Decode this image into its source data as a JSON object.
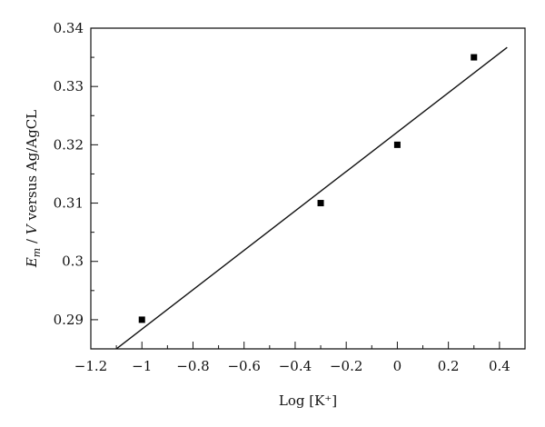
{
  "chart_data": {
    "type": "scatter",
    "xlabel": "Log [K⁺]",
    "ylabel": {
      "main": "E",
      "sub": "m",
      "rest1": " / ",
      "italic": "V",
      "rest2": " versus Ag/AgCL"
    },
    "xlim": [
      -1.2,
      0.5
    ],
    "ylim": [
      0.285,
      0.34
    ],
    "xticks": [
      -1.2,
      -1.0,
      -0.8,
      -0.6,
      -0.4,
      -0.2,
      0,
      0.2,
      0.4
    ],
    "xtick_labels": [
      "−1.2",
      "−1",
      "−0.8",
      "−0.6",
      "−0.4",
      "−0.2",
      "0",
      "0.2",
      "0.4"
    ],
    "yticks": [
      0.29,
      0.3,
      0.31,
      0.32,
      0.33,
      0.34
    ],
    "ytick_labels": [
      "0.29",
      "0.3",
      "0.31",
      "0.32",
      "0.33",
      "0.34"
    ],
    "x_minor_step": 0.1,
    "y_minor_step": 0.005,
    "points": [
      {
        "x": -1.0,
        "y": 0.29
      },
      {
        "x": -0.3,
        "y": 0.31
      },
      {
        "x": 0.0,
        "y": 0.32
      },
      {
        "x": 0.3,
        "y": 0.335
      }
    ],
    "fit_line": {
      "x": [
        -1.1,
        0.43
      ],
      "y": [
        0.285,
        0.3367
      ]
    },
    "grid": false,
    "legend": "none"
  }
}
